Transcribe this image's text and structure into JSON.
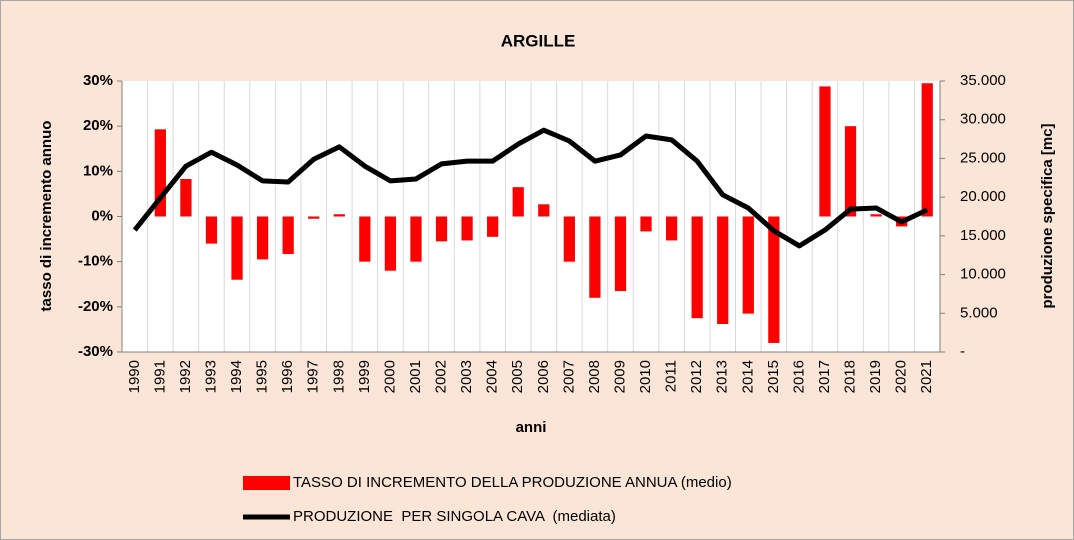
{
  "chart_data": {
    "type": "bar_line",
    "title": "ARGILLE",
    "x_label": "anni",
    "y_label": "tasso di incremento annuo",
    "y2_label": "produzione specifica [mc]",
    "categories": [
      "1990",
      "1991",
      "1992",
      "1993",
      "1994",
      "1995",
      "1996",
      "1997",
      "1998",
      "1999",
      "2000",
      "2001",
      "2002",
      "2003",
      "2004",
      "2005",
      "2006",
      "2007",
      "2008",
      "2009",
      "2010",
      "2011",
      "2012",
      "2013",
      "2014",
      "2015",
      "2016",
      "2017",
      "2018",
      "2019",
      "2020",
      "2021"
    ],
    "series": [
      {
        "name": "TASSO DI INCREMENTO DELLA PRODUZIONE ANNUA (medio)",
        "type": "bar",
        "color": "#ff0000",
        "values": [
          null,
          19.3,
          8.3,
          -6,
          -14,
          -9.5,
          -8.3,
          -0.5,
          0.5,
          -10,
          -12,
          -10,
          -5.5,
          -5.3,
          -4.5,
          6.5,
          2.7,
          -10,
          -18,
          -16.5,
          -3.3,
          -5.3,
          -22.5,
          -23.8,
          -21.5,
          -28,
          0,
          28.8,
          20,
          0.5,
          -2.2,
          29.5
        ]
      },
      {
        "name": "PRODUZIONE  PER SINGOLA CAVA  (mediata)",
        "type": "line",
        "axis": "y2",
        "color": "#000000",
        "values": [
          15750,
          19900,
          24000,
          25800,
          24150,
          22100,
          21950,
          24900,
          26500,
          24000,
          22100,
          22350,
          24300,
          24650,
          24650,
          26850,
          28650,
          27250,
          24650,
          25450,
          27900,
          27400,
          24650,
          20300,
          18600,
          15650,
          13700,
          15750,
          18450,
          18600,
          16800,
          18350
        ]
      }
    ],
    "ylim": [
      -30,
      30
    ],
    "yticks": [
      {
        "value": -30,
        "label": "-30%"
      },
      {
        "value": -20,
        "label": "-20%"
      },
      {
        "value": -10,
        "label": "-10%"
      },
      {
        "value": 0,
        "label": "0%"
      },
      {
        "value": 10,
        "label": "10%"
      },
      {
        "value": 20,
        "label": "20%"
      },
      {
        "value": 30,
        "label": "30%"
      }
    ],
    "y2lim": [
      0,
      35000
    ],
    "y2ticks": [
      {
        "value": 0,
        "label": "-"
      },
      {
        "value": 5000,
        "label": "5.000"
      },
      {
        "value": 10000,
        "label": "10.000"
      },
      {
        "value": 15000,
        "label": "15.000"
      },
      {
        "value": 20000,
        "label": "20.000"
      },
      {
        "value": 25000,
        "label": "25.000"
      },
      {
        "value": 30000,
        "label": "30.000"
      },
      {
        "value": 35000,
        "label": "35.000"
      }
    ],
    "legend": "bottom"
  }
}
